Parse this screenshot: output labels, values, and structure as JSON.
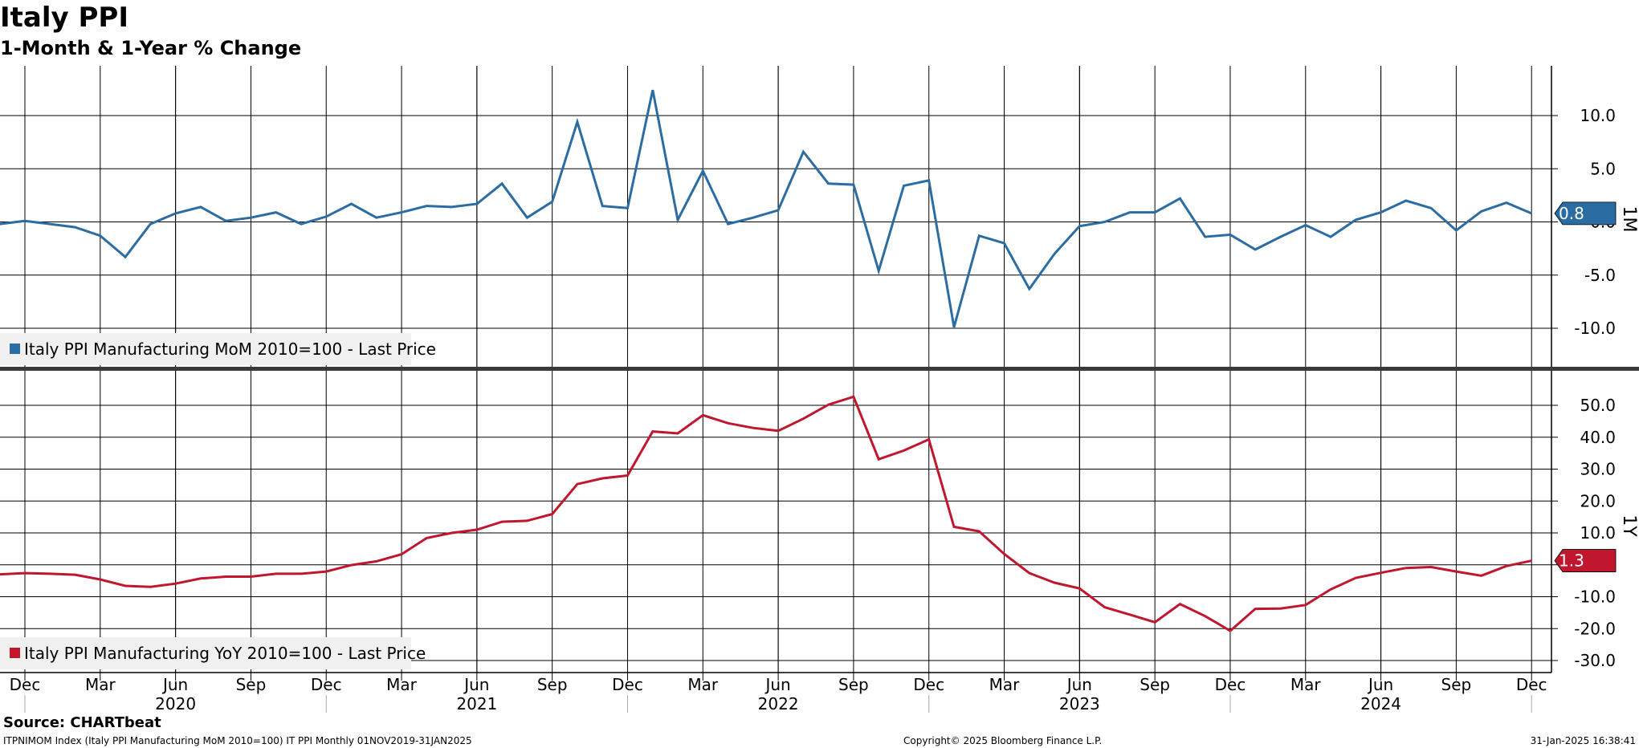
{
  "header": {
    "title": "Italy PPI",
    "subtitle": "1-Month & 1-Year % Change"
  },
  "footer": {
    "source": "Source: CHARTbeat",
    "ticker": "ITPNIMOM Index (Italy PPI Manufacturing MoM 2010=100) IT PPI  Monthly 01NOV2019-31JAN2025",
    "copyright": "Copyright© 2025 Bloomberg Finance L.P.",
    "timestamp": "31-Jan-2025 16:38:41"
  },
  "colors": {
    "mom_series": "#2b6ca3",
    "yoy_series": "#c0172f",
    "grid": "#000000",
    "legend_bg": "#f0f0f0"
  },
  "x_axis": {
    "start": "2019-12",
    "end": "2024-12",
    "month_ticks": [
      {
        "label": "Dec",
        "date": "2019-12"
      },
      {
        "label": "Mar",
        "date": "2020-03"
      },
      {
        "label": "Jun",
        "date": "2020-06"
      },
      {
        "label": "Sep",
        "date": "2020-09"
      },
      {
        "label": "Dec",
        "date": "2020-12"
      },
      {
        "label": "Mar",
        "date": "2021-03"
      },
      {
        "label": "Jun",
        "date": "2021-06"
      },
      {
        "label": "Sep",
        "date": "2021-09"
      },
      {
        "label": "Dec",
        "date": "2021-12"
      },
      {
        "label": "Mar",
        "date": "2022-03"
      },
      {
        "label": "Jun",
        "date": "2022-06"
      },
      {
        "label": "Sep",
        "date": "2022-09"
      },
      {
        "label": "Dec",
        "date": "2022-12"
      },
      {
        "label": "Mar",
        "date": "2023-03"
      },
      {
        "label": "Jun",
        "date": "2023-06"
      },
      {
        "label": "Sep",
        "date": "2023-09"
      },
      {
        "label": "Dec",
        "date": "2023-12"
      },
      {
        "label": "Mar",
        "date": "2024-03"
      },
      {
        "label": "Jun",
        "date": "2024-06"
      },
      {
        "label": "Sep",
        "date": "2024-09"
      },
      {
        "label": "Dec",
        "date": "2024-12"
      }
    ],
    "year_labels": [
      {
        "label": "2020",
        "date": "2020-06"
      },
      {
        "label": "2021",
        "date": "2021-06"
      },
      {
        "label": "2022",
        "date": "2022-06"
      },
      {
        "label": "2023",
        "date": "2023-06"
      },
      {
        "label": "2024",
        "date": "2024-06"
      }
    ]
  },
  "chart_data": [
    {
      "type": "line",
      "panel_label": "1M",
      "legend": "Italy PPI Manufacturing MoM 2010=100 - Last Price",
      "ylim": [
        -13.5,
        15
      ],
      "yticks": [
        -10,
        -5,
        0,
        5,
        10
      ],
      "ytick_labels": [
        "-10.0",
        "-5.0",
        "0.0",
        "5.0",
        "10.0"
      ],
      "last_value_label": "0.8",
      "x": [
        "2019-11",
        "2019-12",
        "2020-01",
        "2020-02",
        "2020-03",
        "2020-04",
        "2020-05",
        "2020-06",
        "2020-07",
        "2020-08",
        "2020-09",
        "2020-10",
        "2020-11",
        "2020-12",
        "2021-01",
        "2021-02",
        "2021-03",
        "2021-04",
        "2021-05",
        "2021-06",
        "2021-07",
        "2021-08",
        "2021-09",
        "2021-10",
        "2021-11",
        "2021-12",
        "2022-01",
        "2022-02",
        "2022-03",
        "2022-04",
        "2022-05",
        "2022-06",
        "2022-07",
        "2022-08",
        "2022-09",
        "2022-10",
        "2022-11",
        "2022-12",
        "2023-01",
        "2023-02",
        "2023-03",
        "2023-04",
        "2023-05",
        "2023-06",
        "2023-07",
        "2023-08",
        "2023-09",
        "2023-10",
        "2023-11",
        "2023-12",
        "2024-01",
        "2024-02",
        "2024-03",
        "2024-04",
        "2024-05",
        "2024-06",
        "2024-07",
        "2024-08",
        "2024-09",
        "2024-10",
        "2024-11",
        "2024-12"
      ],
      "values": [
        -0.2,
        0.1,
        -0.2,
        -0.5,
        -1.3,
        -3.3,
        -0.2,
        0.8,
        1.4,
        0.1,
        0.4,
        0.9,
        -0.2,
        0.5,
        1.7,
        0.4,
        0.9,
        1.5,
        1.4,
        1.7,
        3.6,
        0.4,
        1.9,
        9.4,
        1.5,
        1.3,
        12.4,
        0.2,
        4.8,
        -0.2,
        0.4,
        1.1,
        6.6,
        3.6,
        3.5,
        -4.6,
        3.4,
        3.9,
        -9.9,
        -1.3,
        -2.0,
        -6.3,
        -3.0,
        -0.4,
        0.0,
        0.9,
        0.9,
        2.2,
        -1.4,
        -1.2,
        -2.6,
        -1.4,
        -0.3,
        -1.4,
        0.2,
        0.9,
        2.0,
        1.3,
        -0.8,
        1.0,
        1.8,
        0.8
      ]
    },
    {
      "type": "line",
      "panel_label": "1Y",
      "legend": "Italy PPI Manufacturing YoY 2010=100 - Last Price",
      "ylim": [
        -35,
        57
      ],
      "yticks": [
        -30,
        -20,
        -10,
        0,
        10,
        20,
        30,
        40,
        50
      ],
      "ytick_labels": [
        "-30.0",
        "-20.0",
        "-10.0",
        "0.0",
        "10.0",
        "20.0",
        "30.0",
        "40.0",
        "50.0"
      ],
      "last_value_label": "1.3",
      "x": [
        "2019-11",
        "2019-12",
        "2020-01",
        "2020-02",
        "2020-03",
        "2020-04",
        "2020-05",
        "2020-06",
        "2020-07",
        "2020-08",
        "2020-09",
        "2020-10",
        "2020-11",
        "2020-12",
        "2021-01",
        "2021-02",
        "2021-03",
        "2021-04",
        "2021-05",
        "2021-06",
        "2021-07",
        "2021-08",
        "2021-09",
        "2021-10",
        "2021-11",
        "2021-12",
        "2022-01",
        "2022-02",
        "2022-03",
        "2022-04",
        "2022-05",
        "2022-06",
        "2022-07",
        "2022-08",
        "2022-09",
        "2022-10",
        "2022-11",
        "2022-12",
        "2023-01",
        "2023-02",
        "2023-03",
        "2023-04",
        "2023-05",
        "2023-06",
        "2023-07",
        "2023-08",
        "2023-09",
        "2023-10",
        "2023-11",
        "2023-12",
        "2024-01",
        "2024-02",
        "2024-03",
        "2024-04",
        "2024-05",
        "2024-06",
        "2024-07",
        "2024-08",
        "2024-09",
        "2024-10",
        "2024-11",
        "2024-12"
      ],
      "values": [
        -3.0,
        -2.6,
        -2.8,
        -3.1,
        -4.6,
        -6.6,
        -6.9,
        -5.9,
        -4.3,
        -3.7,
        -3.7,
        -2.8,
        -2.8,
        -2.1,
        -0.1,
        1.1,
        3.3,
        8.4,
        10.0,
        11.0,
        13.5,
        13.8,
        15.9,
        25.3,
        27.1,
        28.0,
        41.8,
        41.2,
        46.9,
        44.4,
        42.9,
        42.0,
        45.8,
        50.2,
        52.7,
        33.1,
        35.8,
        39.3,
        11.9,
        10.5,
        3.4,
        -2.6,
        -5.6,
        -7.4,
        -13.3,
        -15.6,
        -18.0,
        -12.3,
        -16.1,
        -20.7,
        -13.8,
        -13.7,
        -12.6,
        -7.7,
        -4.1,
        -2.5,
        -1.0,
        -0.7,
        -2.1,
        -3.4,
        -0.4,
        1.3
      ]
    }
  ]
}
